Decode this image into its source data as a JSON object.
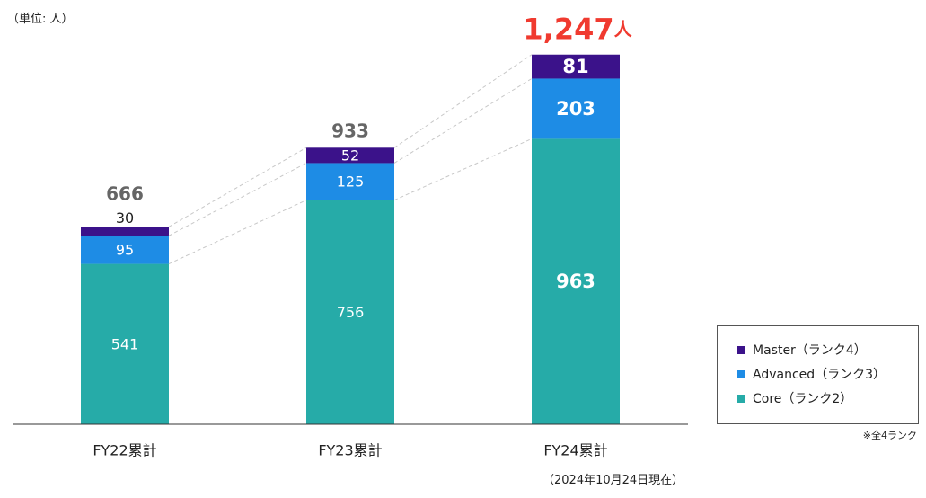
{
  "unit_label": "（単位: 人）",
  "note": "※全4ランク",
  "date_note": "（2024年10月24日現在）",
  "colors": {
    "master": "#3b128a",
    "advanced": "#1e8ce5",
    "core": "#26aba8",
    "highlight": "#f03a2f",
    "total": "#666666"
  },
  "legend": [
    {
      "label": "Master（ランク4）",
      "color": "#3b128a"
    },
    {
      "label": "Advanced（ランク3）",
      "color": "#1e8ce5"
    },
    {
      "label": "Core（ランク2）",
      "color": "#26aba8"
    }
  ],
  "chart_data": {
    "type": "bar",
    "stacked": true,
    "categories": [
      "FY22累計",
      "FY23累計",
      "FY24累計"
    ],
    "series": [
      {
        "name": "Core（ランク2）",
        "values": [
          541,
          756,
          963
        ]
      },
      {
        "name": "Advanced（ランク3）",
        "values": [
          95,
          125,
          203
        ]
      },
      {
        "name": "Master（ランク4）",
        "values": [
          30,
          52,
          81
        ]
      }
    ],
    "totals": [
      "666",
      "933",
      "1,247"
    ],
    "highlight_total_suffix": "人",
    "ylim": [
      0,
      1250
    ],
    "legend_position": "bottom-right",
    "grid": false
  }
}
